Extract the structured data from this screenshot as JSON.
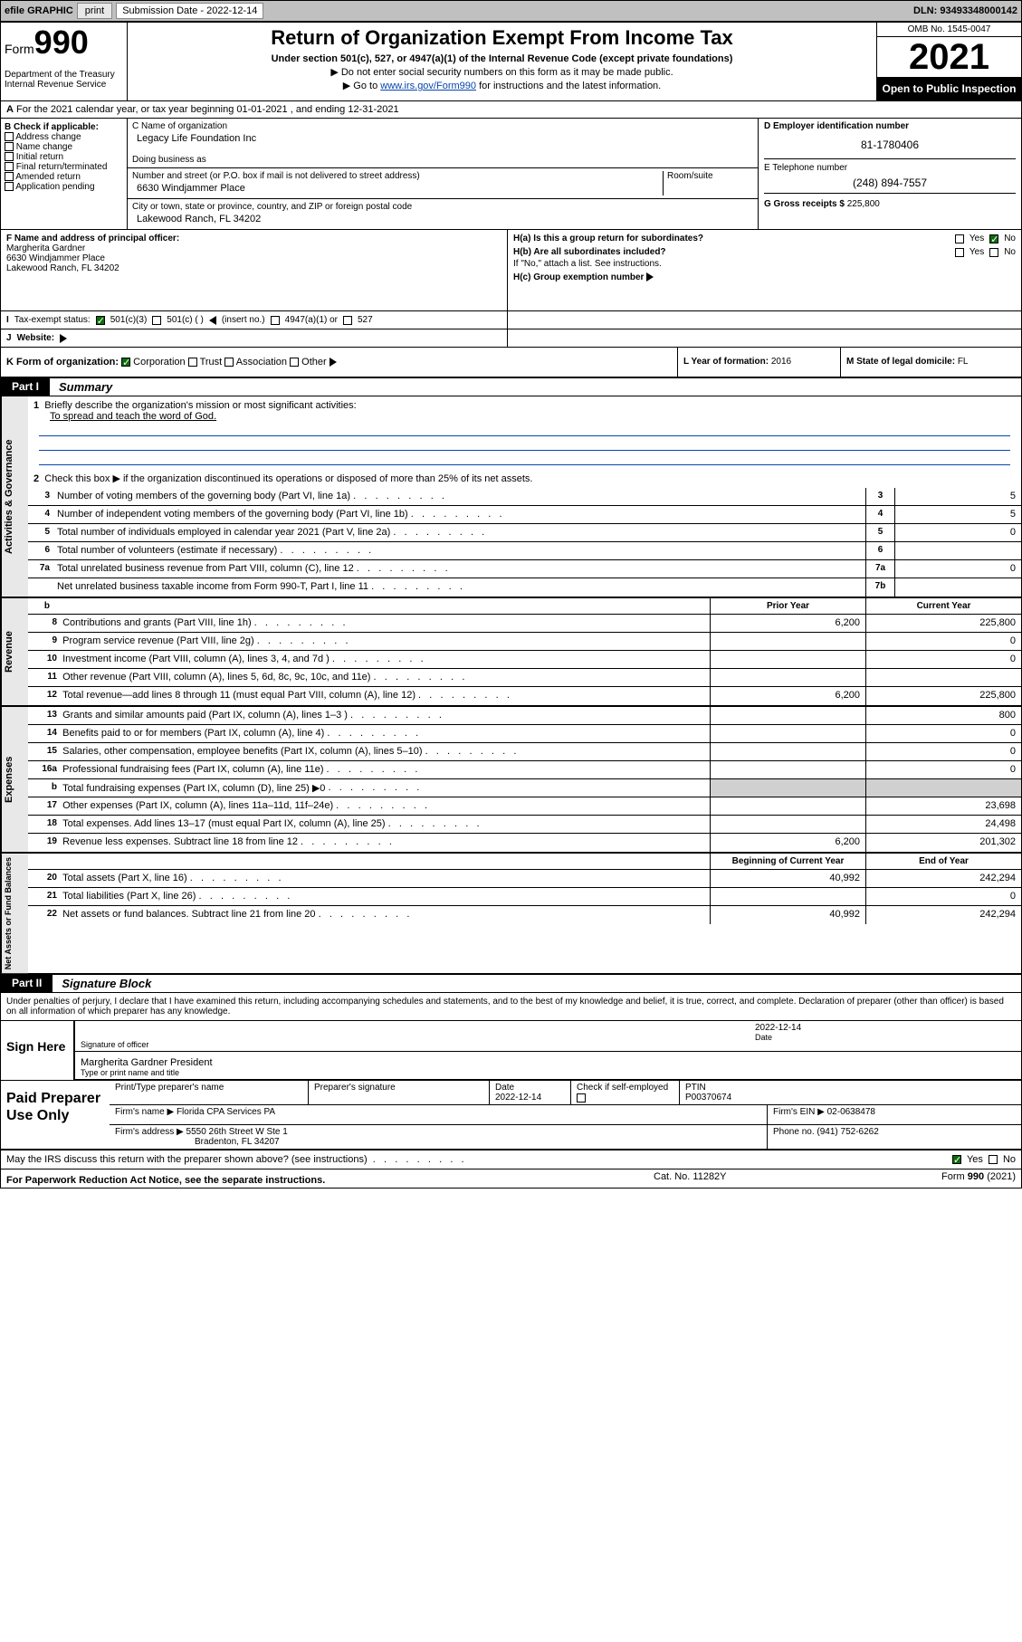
{
  "topbar": {
    "efile": "efile GRAPHIC",
    "print": "print",
    "submission_label": "Submission Date - 2022-12-14",
    "dln": "DLN: 93493348000142"
  },
  "header": {
    "form_prefix": "Form",
    "form_num": "990",
    "dept": "Department of the Treasury",
    "irs": "Internal Revenue Service",
    "title": "Return of Organization Exempt From Income Tax",
    "sub": "Under section 501(c), 527, or 4947(a)(1) of the Internal Revenue Code (except private foundations)",
    "note1": "Do not enter social security numbers on this form as it may be made public.",
    "note2_pre": "Go to ",
    "note2_link": "www.irs.gov/Form990",
    "note2_post": " for instructions and the latest information.",
    "omb": "OMB No. 1545-0047",
    "year": "2021",
    "open": "Open to Public Inspection"
  },
  "sectA": "For the 2021 calendar year, or tax year beginning 01-01-2021   , and ending 12-31-2021",
  "sectA_label": "A",
  "sectB": {
    "label": "B Check if applicable:",
    "opts": [
      "Address change",
      "Name change",
      "Initial return",
      "Final return/terminated",
      "Amended return",
      "Application pending"
    ]
  },
  "sectC": {
    "name_label": "C Name of organization",
    "name": "Legacy Life Foundation Inc",
    "dba_label": "Doing business as",
    "addr_label": "Number and street (or P.O. box if mail is not delivered to street address)",
    "room_label": "Room/suite",
    "addr": "6630 Windjammer Place",
    "city_label": "City or town, state or province, country, and ZIP or foreign postal code",
    "city": "Lakewood Ranch, FL  34202"
  },
  "sectD": {
    "ein_label": "D Employer identification number",
    "ein": "81-1780406"
  },
  "sectE": {
    "tel_label": "E Telephone number",
    "tel": "(248) 894-7557"
  },
  "sectG": {
    "label": "G Gross receipts $",
    "val": "225,800"
  },
  "sectF": {
    "label": "F Name and address of principal officer:",
    "name": "Margherita Gardner",
    "addr": "6630 Windjammer Place",
    "city": "Lakewood Ranch, FL  34202"
  },
  "sectH": {
    "a": "H(a)  Is this a group return for subordinates?",
    "b": "H(b)  Are all subordinates included?",
    "bnote": "If \"No,\" attach a list. See instructions.",
    "c": "H(c)  Group exemption number",
    "yes": "Yes",
    "no": "No"
  },
  "sectI": {
    "label": "Tax-exempt status:",
    "I": "I",
    "c3": "501(c)(3)",
    "cparen": "501(c) ( )",
    "insert": "(insert no.)",
    "c4947": "4947(a)(1) or",
    "c527": "527"
  },
  "sectJ": {
    "label": "J",
    "text": "Website:"
  },
  "sectK": {
    "label": "K Form of organization:",
    "opts": [
      "Corporation",
      "Trust",
      "Association",
      "Other"
    ]
  },
  "sectL": {
    "label": "L Year of formation:",
    "val": "2016"
  },
  "sectM": {
    "label": "M State of legal domicile:",
    "val": "FL"
  },
  "part1": {
    "num": "Part I",
    "title": "Summary"
  },
  "mission_label": "Briefly describe the organization's mission or most significant activities:",
  "mission": "To spread and teach the word of God.",
  "line2": "Check this box ▶      if the organization discontinued its operations or disposed of more than 25% of its net assets.",
  "lines_gov": [
    {
      "n": "3",
      "t": "Number of voting members of the governing body (Part VI, line 1a)",
      "box": "3",
      "v": "5"
    },
    {
      "n": "4",
      "t": "Number of independent voting members of the governing body (Part VI, line 1b)",
      "box": "4",
      "v": "5"
    },
    {
      "n": "5",
      "t": "Total number of individuals employed in calendar year 2021 (Part V, line 2a)",
      "box": "5",
      "v": "0"
    },
    {
      "n": "6",
      "t": "Total number of volunteers (estimate if necessary)",
      "box": "6",
      "v": ""
    },
    {
      "n": "7a",
      "t": "Total unrelated business revenue from Part VIII, column (C), line 12",
      "box": "7a",
      "v": "0"
    },
    {
      "n": "",
      "t": "Net unrelated business taxable income from Form 990-T, Part I, line 11",
      "box": "7b",
      "v": ""
    }
  ],
  "col_prior": "Prior Year",
  "col_current": "Current Year",
  "sidelabels": {
    "gov": "Activities & Governance",
    "rev": "Revenue",
    "exp": "Expenses",
    "net": "Net Assets or Fund Balances"
  },
  "lines_rev": [
    {
      "n": "8",
      "t": "Contributions and grants (Part VIII, line 1h)",
      "p": "6,200",
      "c": "225,800"
    },
    {
      "n": "9",
      "t": "Program service revenue (Part VIII, line 2g)",
      "p": "",
      "c": "0"
    },
    {
      "n": "10",
      "t": "Investment income (Part VIII, column (A), lines 3, 4, and 7d )",
      "p": "",
      "c": "0"
    },
    {
      "n": "11",
      "t": "Other revenue (Part VIII, column (A), lines 5, 6d, 8c, 9c, 10c, and 11e)",
      "p": "",
      "c": ""
    },
    {
      "n": "12",
      "t": "Total revenue—add lines 8 through 11 (must equal Part VIII, column (A), line 12)",
      "p": "6,200",
      "c": "225,800"
    }
  ],
  "lines_exp": [
    {
      "n": "13",
      "t": "Grants and similar amounts paid (Part IX, column (A), lines 1–3 )",
      "p": "",
      "c": "800"
    },
    {
      "n": "14",
      "t": "Benefits paid to or for members (Part IX, column (A), line 4)",
      "p": "",
      "c": "0"
    },
    {
      "n": "15",
      "t": "Salaries, other compensation, employee benefits (Part IX, column (A), lines 5–10)",
      "p": "",
      "c": "0"
    },
    {
      "n": "16a",
      "t": "Professional fundraising fees (Part IX, column (A), line 11e)",
      "p": "",
      "c": "0"
    },
    {
      "n": "b",
      "t": "Total fundraising expenses (Part IX, column (D), line 25) ▶0",
      "p": "gray",
      "c": "gray"
    },
    {
      "n": "17",
      "t": "Other expenses (Part IX, column (A), lines 11a–11d, 11f–24e)",
      "p": "",
      "c": "23,698"
    },
    {
      "n": "18",
      "t": "Total expenses. Add lines 13–17 (must equal Part IX, column (A), line 25)",
      "p": "",
      "c": "24,498"
    },
    {
      "n": "19",
      "t": "Revenue less expenses. Subtract line 18 from line 12",
      "p": "6,200",
      "c": "201,302"
    }
  ],
  "col_begin": "Beginning of Current Year",
  "col_end": "End of Year",
  "lines_net": [
    {
      "n": "20",
      "t": "Total assets (Part X, line 16)",
      "p": "40,992",
      "c": "242,294"
    },
    {
      "n": "21",
      "t": "Total liabilities (Part X, line 26)",
      "p": "",
      "c": "0"
    },
    {
      "n": "22",
      "t": "Net assets or fund balances. Subtract line 21 from line 20",
      "p": "40,992",
      "c": "242,294"
    }
  ],
  "part2": {
    "num": "Part II",
    "title": "Signature Block"
  },
  "penalties": "Under penalties of perjury, I declare that I have examined this return, including accompanying schedules and statements, and to the best of my knowledge and belief, it is true, correct, and complete. Declaration of preparer (other than officer) is based on all information of which preparer has any knowledge.",
  "sign": {
    "here": "Sign Here",
    "sig_label": "Signature of officer",
    "date_label": "Date",
    "date_val": "2022-12-14",
    "name": "Margherita Gardner President",
    "name_label": "Type or print name and title"
  },
  "paid": {
    "title": "Paid Preparer Use Only",
    "h1": "Print/Type preparer's name",
    "h2": "Preparer's signature",
    "h3": "Date",
    "h3v": "2022-12-14",
    "h4": "Check       if self-employed",
    "h5": "PTIN",
    "h5v": "P00370674",
    "firm_label": "Firm's name     ▶",
    "firm": "Florida CPA Services PA",
    "ein_label": "Firm's EIN ▶",
    "ein": "02-0638478",
    "addr_label": "Firm's address ▶",
    "addr1": "5550 26th Street W Ste 1",
    "addr2": "Bradenton, FL  34207",
    "phone_label": "Phone no.",
    "phone": "(941) 752-6262"
  },
  "may_discuss": "May the IRS discuss this return with the preparer shown above? (see instructions)",
  "yes": "Yes",
  "no": "No",
  "pwra": "For Paperwork Reduction Act Notice, see the separate instructions.",
  "cat": "Cat. No. 11282Y",
  "form_footer": "Form 990 (2021)"
}
